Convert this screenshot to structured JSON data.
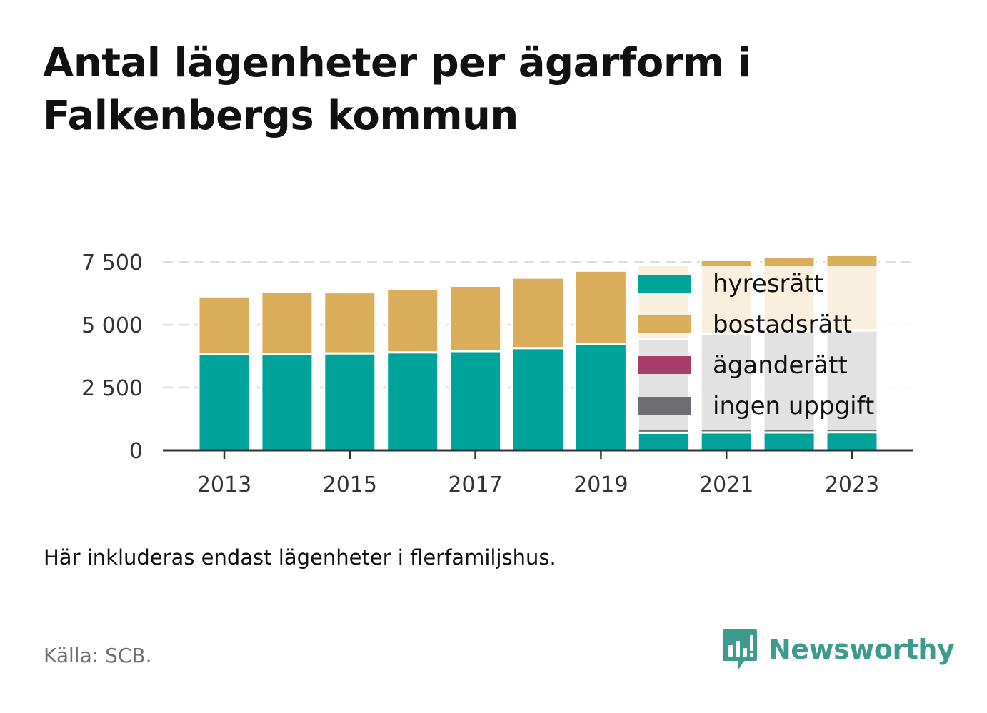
{
  "title": "Antal lägenheter per ägarform i Falkenbergs kommun",
  "note": "Här inkluderas endast lägenheter i flerfamiljshus.",
  "source": "Källa: SCB.",
  "brand": "Newsworthy",
  "colors": {
    "hyresratt": "#00a39a",
    "bostadsratt": "#d9ad5a",
    "aganderatt": "#a63d69",
    "ingen_uppgift": "#6e6e72",
    "grid": "#dddddd",
    "axis": "#333333",
    "brand": "#3f9a8e"
  },
  "chart_data": {
    "type": "bar",
    "stacked": true,
    "categories": [
      "2013",
      "2014",
      "2015",
      "2016",
      "2017",
      "2018",
      "2019",
      "2020",
      "2021",
      "2022",
      "2023"
    ],
    "x_tick_labels": [
      "2013",
      "2015",
      "2017",
      "2019",
      "2021",
      "2023"
    ],
    "y_ticks": [
      0,
      2500,
      5000,
      7500
    ],
    "y_tick_labels": [
      "0",
      "2 500",
      "5 000",
      "7 500"
    ],
    "ylim": [
      0,
      8000
    ],
    "grid": true,
    "legend_position": "right-inside",
    "series": [
      {
        "name": "hyresrätt",
        "color": "#00a39a",
        "values": [
          3830,
          3850,
          3860,
          3900,
          3950,
          4070,
          4230,
          700,
          710,
          710,
          720
        ]
      },
      {
        "name": "bostadsrätt",
        "color": "#d9ad5a",
        "values": [
          2300,
          2450,
          2430,
          2520,
          2600,
          2800,
          2920,
          2960,
          2960,
          2980,
          3030
        ]
      },
      {
        "name": "äganderätt",
        "color": "#a63d69",
        "values": [
          0,
          0,
          0,
          0,
          0,
          0,
          0,
          0,
          0,
          0,
          0
        ]
      },
      {
        "name": "ingen uppgift",
        "color": "#6e6e72",
        "values": [
          0,
          0,
          0,
          0,
          0,
          0,
          0,
          3730,
          3930,
          4010,
          4050
        ]
      }
    ]
  }
}
